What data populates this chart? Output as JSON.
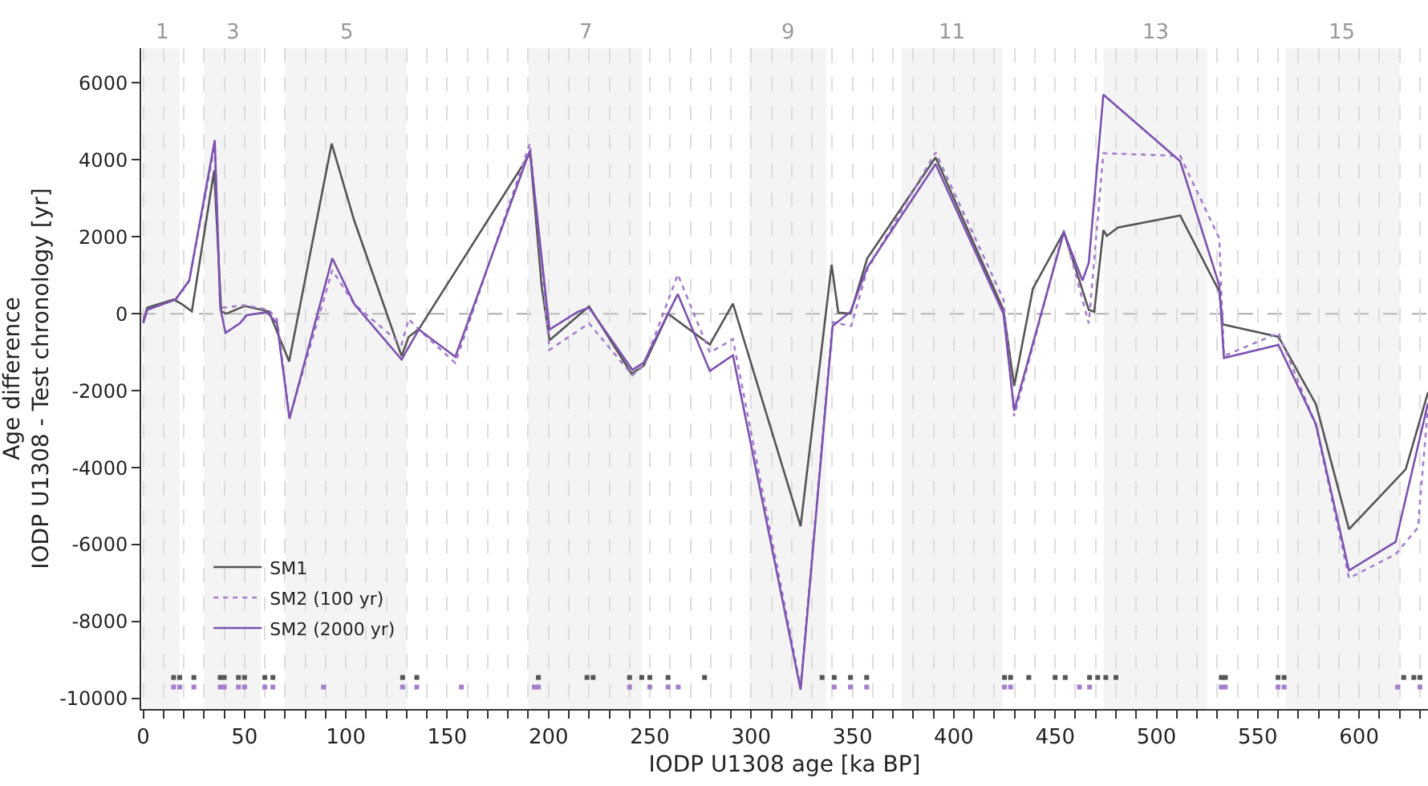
{
  "chart_data": {
    "type": "line",
    "xlabel": "IODP U1308 age [ka BP]",
    "ylabel": "Age difference\nIODP U1308 - Test chronology [yr]",
    "xlim": [
      -1,
      634
    ],
    "ylim": [
      -10270,
      6900
    ],
    "xticks": [
      0,
      {
        "value": 10,
        "label": null
      },
      {
        "value": 20,
        "label": null
      },
      {
        "value": 30,
        "label": null
      },
      {
        "value": 40,
        "label": null
      },
      50,
      {
        "value": 60,
        "label": null
      },
      {
        "value": 70,
        "label": null
      },
      {
        "value": 80,
        "label": null
      },
      {
        "value": 90,
        "label": null
      },
      100,
      {
        "value": 110,
        "label": null
      },
      {
        "value": 120,
        "label": null
      },
      {
        "value": 130,
        "label": null
      },
      {
        "value": 140,
        "label": null
      },
      150,
      {
        "value": 160,
        "label": null
      },
      {
        "value": 170,
        "label": null
      },
      {
        "value": 180,
        "label": null
      },
      {
        "value": 190,
        "label": null
      },
      200,
      {
        "value": 210,
        "label": null
      },
      {
        "value": 220,
        "label": null
      },
      {
        "value": 230,
        "label": null
      },
      {
        "value": 240,
        "label": null
      },
      250,
      {
        "value": 260,
        "label": null
      },
      {
        "value": 270,
        "label": null
      },
      {
        "value": 280,
        "label": null
      },
      {
        "value": 290,
        "label": null
      },
      300,
      {
        "value": 310,
        "label": null
      },
      {
        "value": 320,
        "label": null
      },
      {
        "value": 330,
        "label": null
      },
      {
        "value": 340,
        "label": null
      },
      350,
      {
        "value": 360,
        "label": null
      },
      {
        "value": 370,
        "label": null
      },
      {
        "value": 380,
        "label": null
      },
      {
        "value": 390,
        "label": null
      },
      400,
      {
        "value": 410,
        "label": null
      },
      {
        "value": 420,
        "label": null
      },
      {
        "value": 430,
        "label": null
      },
      {
        "value": 440,
        "label": null
      },
      450,
      {
        "value": 460,
        "label": null
      },
      {
        "value": 470,
        "label": null
      },
      {
        "value": 480,
        "label": null
      },
      {
        "value": 490,
        "label": null
      },
      500,
      {
        "value": 510,
        "label": null
      },
      {
        "value": 520,
        "label": null
      },
      {
        "value": 530,
        "label": null
      },
      {
        "value": 540,
        "label": null
      },
      550,
      {
        "value": 560,
        "label": null
      },
      {
        "value": 570,
        "label": null
      },
      {
        "value": 580,
        "label": null
      },
      {
        "value": 590,
        "label": null
      },
      600,
      {
        "value": 610,
        "label": null
      },
      {
        "value": 620,
        "label": null
      },
      {
        "value": 630,
        "label": null
      }
    ],
    "yticks": [
      -10000,
      -8000,
      -6000,
      -4000,
      -2000,
      0,
      2000,
      4000,
      6000
    ],
    "grid": "x",
    "legend": "bottom left",
    "marker": "none",
    "line_style": "solid",
    "ref_lines": [
      {
        "axis": "y",
        "value": 0,
        "label": null,
        "color": "#aaaaaa",
        "line_style": "dashed"
      }
    ],
    "bands": [
      {
        "axis": "x",
        "from": 0,
        "to": 18,
        "label": "1",
        "color": "#d9d9d9"
      },
      {
        "axis": "x",
        "from": 30,
        "to": 58,
        "label": "3",
        "color": "#d9d9d9"
      },
      {
        "axis": "x",
        "from": 70,
        "to": 130,
        "label": "5",
        "color": "#d9d9d9"
      },
      {
        "axis": "x",
        "from": 190,
        "to": 246,
        "label": "7",
        "color": "#d9d9d9"
      },
      {
        "axis": "x",
        "from": 299,
        "to": 337,
        "label": "9",
        "color": "#d9d9d9"
      },
      {
        "axis": "x",
        "from": 374,
        "to": 424,
        "label": "11",
        "color": "#d9d9d9"
      },
      {
        "axis": "x",
        "from": 474,
        "to": 525,
        "label": "13",
        "color": "#d9d9d9"
      },
      {
        "axis": "x",
        "from": 564,
        "to": 620,
        "label": "15",
        "color": "#d9d9d9"
      }
    ],
    "series": [
      {
        "name": "SM1",
        "color": "#555555",
        "x": [
          0,
          2,
          15,
          19,
          24,
          35,
          38.5,
          41,
          50,
          62,
          72,
          93,
          104,
          127.5,
          131,
          136,
          191,
          196.6,
          200.5,
          220,
          241,
          247,
          259,
          279.6,
          291,
          324.4,
          339.7,
          343,
          349,
          357.3,
          391,
          424.5,
          429.8,
          439,
          454.3,
          466.6,
          469.3,
          473.8,
          475.5,
          481,
          511.7,
          531,
          532.8,
          560.2,
          578.7,
          595,
          623,
          634
        ],
        "values": [
          -200,
          160,
          370,
          250,
          60,
          3720,
          60,
          0,
          200,
          60,
          -1240,
          4420,
          2440,
          -1100,
          -600,
          -400,
          4170,
          720,
          -690,
          190,
          -1560,
          -1350,
          0,
          -800,
          260,
          -5520,
          1270,
          30,
          0,
          1440,
          4060,
          100,
          -1880,
          650,
          2120,
          100,
          50,
          2170,
          2020,
          2240,
          2550,
          580,
          -280,
          -600,
          -2350,
          -5600,
          -4040,
          -2040
        ]
      },
      {
        "name": "SM2 (100 yr)",
        "color": "#a47fcc",
        "line_style": "dotted",
        "x": [
          0,
          2,
          16,
          22.7,
          35.3,
          38,
          50,
          62,
          66,
          72.2,
          93.3,
          104.3,
          127.5,
          131,
          136,
          154,
          190.8,
          200.5,
          220,
          241.4,
          247,
          263.8,
          279.6,
          291,
          324.4,
          340.2,
          349.4,
          357.3,
          391,
          424.5,
          429.8,
          454.3,
          466.6,
          473.8,
          511.7,
          531,
          533.3,
          560.2,
          578.7,
          595,
          618,
          629,
          634
        ],
        "values": [
          -100,
          100,
          370,
          860,
          4390,
          150,
          220,
          100,
          -150,
          -2700,
          1130,
          240,
          -800,
          -140,
          -410,
          -1280,
          4420,
          -940,
          -250,
          -1600,
          -1350,
          1020,
          -1010,
          -660,
          -9700,
          -220,
          -320,
          1150,
          4190,
          370,
          -2660,
          2170,
          -250,
          4170,
          4100,
          1960,
          -1100,
          -500,
          -2900,
          -6870,
          -6250,
          -5560,
          -2400
        ]
      },
      {
        "name": "SM2 (2000 yr)",
        "color": "#7b52ae",
        "x": [
          0,
          2,
          16,
          22.7,
          35.3,
          38,
          40.6,
          47.7,
          51,
          61,
          66,
          72.2,
          93.3,
          104.3,
          127.5,
          136,
          154,
          190.8,
          200.5,
          214.5,
          220,
          241.4,
          247,
          263.8,
          279.6,
          291,
          324.4,
          340.2,
          349,
          357.3,
          391,
          424.5,
          429.8,
          454.3,
          463.5,
          466.6,
          473.8,
          511.7,
          531,
          533.3,
          560.2,
          578.7,
          595,
          618,
          634
        ],
        "values": [
          -250,
          100,
          370,
          860,
          4510,
          160,
          -500,
          -250,
          -40,
          40,
          -250,
          -2730,
          1440,
          240,
          -1190,
          -410,
          -1120,
          4240,
          -410,
          50,
          160,
          -1460,
          -1270,
          510,
          -1490,
          -1080,
          -9770,
          -320,
          50,
          1200,
          3890,
          0,
          -2520,
          2120,
          860,
          1320,
          5690,
          3960,
          740,
          -1150,
          -810,
          -2870,
          -6670,
          -5930,
          -2320
        ]
      },
      {
        "type": "scatter",
        "color": "#555555",
        "marker": "square",
        "x": [
          15,
          18,
          25,
          38,
          40,
          47,
          50,
          60,
          64,
          128,
          135,
          195,
          219,
          222,
          240,
          246,
          250,
          259,
          277,
          335,
          341,
          349,
          357,
          425,
          428,
          437,
          450,
          455,
          467,
          471,
          475,
          480,
          532,
          534,
          560,
          563,
          622,
          627,
          630
        ],
        "values": [
          -9450,
          -9450,
          -9450,
          -9450,
          -9450,
          -9450,
          -9450,
          -9450,
          -9450,
          -9450,
          -9450,
          -9450,
          -9450,
          -9450,
          -9450,
          -9450,
          -9450,
          -9450,
          -9450,
          -9450,
          -9450,
          -9450,
          -9450,
          -9450,
          -9450,
          -9450,
          -9450,
          -9450,
          -9450,
          -9450,
          -9450,
          -9450,
          -9450,
          -9450,
          -9450,
          -9450,
          -9450,
          -9450,
          -9450
        ]
      },
      {
        "type": "scatter",
        "color": "#a47fcc",
        "marker": "square",
        "x": [
          15,
          18,
          25,
          38,
          40,
          47,
          50,
          60,
          64,
          89,
          128,
          135,
          157,
          193,
          195,
          240,
          250,
          259,
          264,
          341,
          349,
          357,
          425,
          428,
          462,
          467,
          532,
          534,
          560,
          563,
          619,
          630
        ],
        "values": [
          -9700,
          -9700,
          -9700,
          -9700,
          -9700,
          -9700,
          -9700,
          -9700,
          -9700,
          -9700,
          -9700,
          -9700,
          -9700,
          -9700,
          -9700,
          -9700,
          -9700,
          -9700,
          -9700,
          -9700,
          -9700,
          -9700,
          -9700,
          -9700,
          -9700,
          -9700,
          -9700,
          -9700,
          -9700,
          -9700,
          -9700,
          -9700
        ]
      }
    ]
  }
}
